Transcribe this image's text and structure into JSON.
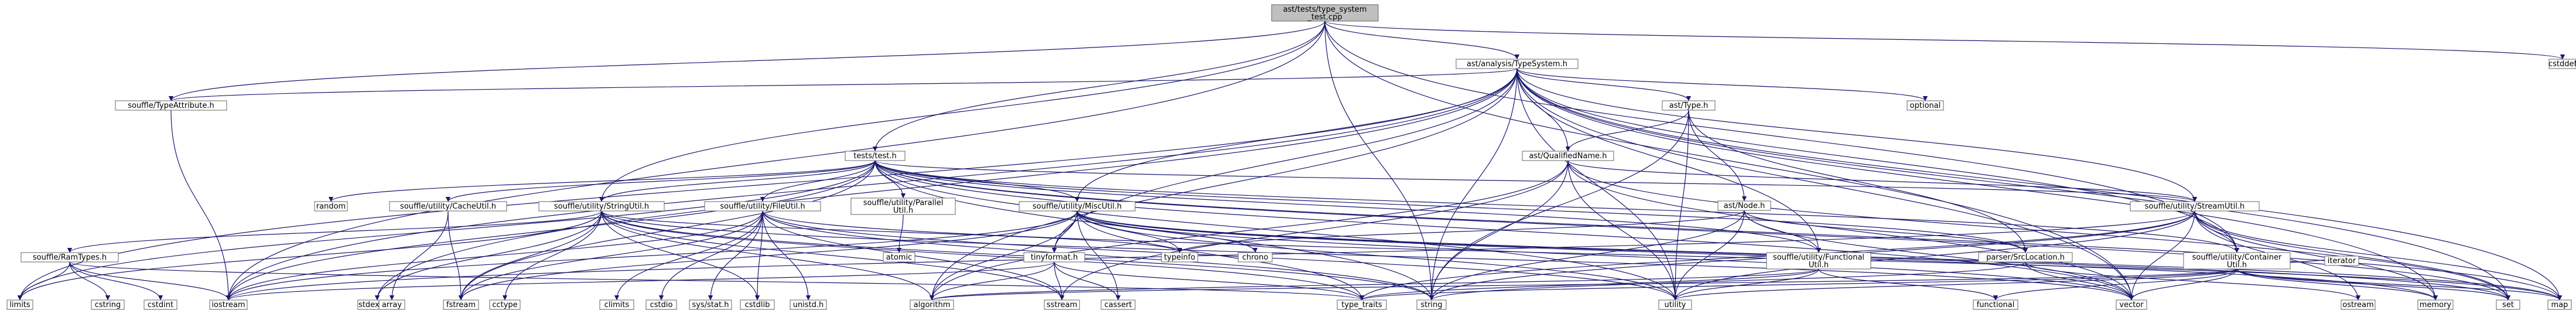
{
  "title": "Include dependency graph for ast/tests/type_system_test.cpp",
  "colors": {
    "root_fill": "#bfbfbf",
    "node_fill": "#ffffff",
    "edge": "#191970",
    "node_border": "#666666",
    "highlight_text": "#cc0000"
  },
  "nodes": [
    {
      "id": "root",
      "lines": [
        "ast/tests/type_system",
        "_test.cpp"
      ],
      "kind": "root",
      "interactable": false
    },
    {
      "id": "typesystem",
      "lines": [
        "ast/analysis/TypeSystem.h"
      ],
      "kind": "file",
      "interactable": true
    },
    {
      "id": "typeattribute",
      "lines": [
        "souffle/TypeAttribute.h"
      ],
      "kind": "file",
      "interactable": true
    },
    {
      "id": "tests",
      "lines": [
        "tests/test.h"
      ],
      "kind": "file",
      "interactable": true
    },
    {
      "id": "asttype",
      "lines": [
        "ast/Type.h"
      ],
      "kind": "file",
      "interactable": true
    },
    {
      "id": "qualifiedname",
      "lines": [
        "ast/QualifiedName.h"
      ],
      "kind": "file",
      "interactable": true
    },
    {
      "id": "astnode",
      "lines": [
        "ast/Node.h"
      ],
      "kind": "file-red",
      "interactable": true
    },
    {
      "id": "srclocation",
      "lines": [
        "parser/SrcLocation.h"
      ],
      "kind": "file",
      "interactable": true
    },
    {
      "id": "cachedutil",
      "lines": [
        "souffle/utility/CacheUtil.h"
      ],
      "kind": "file",
      "interactable": true
    },
    {
      "id": "stringutil",
      "lines": [
        "souffle/utility/StringUtil.h"
      ],
      "kind": "file",
      "interactable": true
    },
    {
      "id": "fileutil",
      "lines": [
        "souffle/utility/FileUtil.h"
      ],
      "kind": "file",
      "interactable": true
    },
    {
      "id": "parallelutil",
      "lines": [
        "souffle/utility/Parallel",
        "Util.h"
      ],
      "kind": "file",
      "interactable": true
    },
    {
      "id": "miscutil",
      "lines": [
        "souffle/utility/MiscUtil.h"
      ],
      "kind": "file",
      "interactable": true
    },
    {
      "id": "streamutil",
      "lines": [
        "souffle/utility/StreamUtil.h"
      ],
      "kind": "file",
      "interactable": true
    },
    {
      "id": "functionalutil",
      "lines": [
        "souffle/utility/Functional",
        "Util.h"
      ],
      "kind": "file",
      "interactable": true
    },
    {
      "id": "containerutil",
      "lines": [
        "souffle/utility/Container",
        "Util.h"
      ],
      "kind": "file",
      "interactable": true
    },
    {
      "id": "ramtypes",
      "lines": [
        "souffle/RamTypes.h"
      ],
      "kind": "file",
      "interactable": true
    },
    {
      "id": "tinyformat",
      "lines": [
        "tinyformat.h"
      ],
      "kind": "file",
      "interactable": true
    },
    {
      "id": "cstddef",
      "lines": [
        "cstddef"
      ],
      "kind": "std",
      "interactable": false
    },
    {
      "id": "optional",
      "lines": [
        "optional"
      ],
      "kind": "std",
      "interactable": false
    },
    {
      "id": "random",
      "lines": [
        "random"
      ],
      "kind": "std",
      "interactable": false
    },
    {
      "id": "stdexcept",
      "lines": [
        "stdexcept"
      ],
      "kind": "std",
      "interactable": false
    },
    {
      "id": "array",
      "lines": [
        "array"
      ],
      "kind": "std",
      "interactable": false
    },
    {
      "id": "fstream",
      "lines": [
        "fstream"
      ],
      "kind": "std",
      "interactable": false
    },
    {
      "id": "cctype",
      "lines": [
        "cctype"
      ],
      "kind": "std",
      "interactable": false
    },
    {
      "id": "climits",
      "lines": [
        "climits"
      ],
      "kind": "std",
      "interactable": false
    },
    {
      "id": "cstdio",
      "lines": [
        "cstdio"
      ],
      "kind": "std",
      "interactable": false
    },
    {
      "id": "sysstat",
      "lines": [
        "sys/stat.h"
      ],
      "kind": "std",
      "interactable": false
    },
    {
      "id": "cstdlib",
      "lines": [
        "cstdlib"
      ],
      "kind": "std",
      "interactable": false
    },
    {
      "id": "unistd",
      "lines": [
        "unistd.h"
      ],
      "kind": "std",
      "interactable": false
    },
    {
      "id": "atomic",
      "lines": [
        "atomic"
      ],
      "kind": "std",
      "interactable": false
    },
    {
      "id": "typeinfo",
      "lines": [
        "typeinfo"
      ],
      "kind": "std",
      "interactable": false
    },
    {
      "id": "chrono",
      "lines": [
        "chrono"
      ],
      "kind": "std",
      "interactable": false
    },
    {
      "id": "limits",
      "lines": [
        "limits"
      ],
      "kind": "std",
      "interactable": false
    },
    {
      "id": "cstring",
      "lines": [
        "cstring"
      ],
      "kind": "std",
      "interactable": false
    },
    {
      "id": "cstdint",
      "lines": [
        "cstdint"
      ],
      "kind": "std",
      "interactable": false
    },
    {
      "id": "iostream",
      "lines": [
        "iostream"
      ],
      "kind": "std",
      "interactable": false
    },
    {
      "id": "algorithm",
      "lines": [
        "algorithm"
      ],
      "kind": "std",
      "interactable": false
    },
    {
      "id": "sstream",
      "lines": [
        "sstream"
      ],
      "kind": "std",
      "interactable": false
    },
    {
      "id": "cassert",
      "lines": [
        "cassert"
      ],
      "kind": "std",
      "interactable": false
    },
    {
      "id": "string",
      "lines": [
        "string"
      ],
      "kind": "std",
      "interactable": false
    },
    {
      "id": "type_traits",
      "lines": [
        "type_traits"
      ],
      "kind": "std",
      "interactable": false
    },
    {
      "id": "utility",
      "lines": [
        "utility"
      ],
      "kind": "std",
      "interactable": false
    },
    {
      "id": "functional",
      "lines": [
        "functional"
      ],
      "kind": "std",
      "interactable": false
    },
    {
      "id": "vector",
      "lines": [
        "vector"
      ],
      "kind": "std",
      "interactable": false
    },
    {
      "id": "ostream",
      "lines": [
        "ostream"
      ],
      "kind": "std",
      "interactable": false
    },
    {
      "id": "iterator",
      "lines": [
        "iterator"
      ],
      "kind": "std",
      "interactable": false
    },
    {
      "id": "memory",
      "lines": [
        "memory"
      ],
      "kind": "std",
      "interactable": false
    },
    {
      "id": "set",
      "lines": [
        "set"
      ],
      "kind": "std",
      "interactable": false
    },
    {
      "id": "map",
      "lines": [
        "map"
      ],
      "kind": "std",
      "interactable": false
    }
  ],
  "edges": [
    [
      "root",
      "typesystem"
    ],
    [
      "root",
      "typeattribute"
    ],
    [
      "root",
      "tests"
    ],
    [
      "root",
      "stringutil"
    ],
    [
      "root",
      "string"
    ],
    [
      "root",
      "cstddef"
    ],
    [
      "root",
      "containerutil"
    ],
    [
      "root",
      "iostream"
    ],
    [
      "root",
      "vector"
    ],
    [
      "typesystem",
      "typeattribute"
    ],
    [
      "typesystem",
      "asttype"
    ],
    [
      "typesystem",
      "qualifiedname"
    ],
    [
      "typesystem",
      "optional"
    ],
    [
      "typesystem",
      "streamutil"
    ],
    [
      "typesystem",
      "containerutil"
    ],
    [
      "typesystem",
      "functionalutil"
    ],
    [
      "typesystem",
      "miscutil"
    ],
    [
      "typesystem",
      "tinyformat"
    ],
    [
      "typesystem",
      "stdexcept"
    ],
    [
      "typesystem",
      "iostream"
    ],
    [
      "typesystem",
      "algorithm"
    ],
    [
      "typesystem",
      "string"
    ],
    [
      "typesystem",
      "utility"
    ],
    [
      "typesystem",
      "vector"
    ],
    [
      "typesystem",
      "memory"
    ],
    [
      "typesystem",
      "set"
    ],
    [
      "typesystem",
      "map"
    ],
    [
      "typesystem",
      "limits"
    ],
    [
      "typeattribute",
      "iostream"
    ],
    [
      "tests",
      "random"
    ],
    [
      "tests",
      "cachedutil"
    ],
    [
      "tests",
      "stringutil"
    ],
    [
      "tests",
      "fileutil"
    ],
    [
      "tests",
      "parallelutil"
    ],
    [
      "tests",
      "miscutil"
    ],
    [
      "tests",
      "streamutil"
    ],
    [
      "tests",
      "functionalutil"
    ],
    [
      "tests",
      "containerutil"
    ],
    [
      "tests",
      "srclocation"
    ],
    [
      "tests",
      "fstream"
    ],
    [
      "tests",
      "iostream"
    ],
    [
      "tests",
      "string"
    ],
    [
      "tests",
      "utility"
    ],
    [
      "tests",
      "vector"
    ],
    [
      "tests",
      "set"
    ],
    [
      "tests",
      "map"
    ],
    [
      "tests",
      "limits"
    ],
    [
      "asttype",
      "qualifiedname"
    ],
    [
      "asttype",
      "astnode"
    ],
    [
      "asttype",
      "string"
    ],
    [
      "asttype",
      "utility"
    ],
    [
      "asttype",
      "srclocation"
    ],
    [
      "qualifiedname",
      "streamutil"
    ],
    [
      "qualifiedname",
      "algorithm"
    ],
    [
      "qualifiedname",
      "string"
    ],
    [
      "qualifiedname",
      "utility"
    ],
    [
      "qualifiedname",
      "vector"
    ],
    [
      "qualifiedname",
      "sstream"
    ],
    [
      "qualifiedname",
      "set"
    ],
    [
      "astnode",
      "srclocation"
    ],
    [
      "astnode",
      "functionalutil"
    ],
    [
      "astnode",
      "typeinfo"
    ],
    [
      "astnode",
      "string"
    ],
    [
      "astnode",
      "utility"
    ],
    [
      "astnode",
      "vector"
    ],
    [
      "srclocation",
      "ostream"
    ],
    [
      "srclocation",
      "string"
    ],
    [
      "srclocation",
      "vector"
    ],
    [
      "cachedutil",
      "array"
    ],
    [
      "cachedutil",
      "fstream"
    ],
    [
      "stringutil",
      "ramtypes"
    ],
    [
      "stringutil",
      "stdexcept"
    ],
    [
      "stringutil",
      "fstream"
    ],
    [
      "stringutil",
      "cctype"
    ],
    [
      "stringutil",
      "cstdlib"
    ],
    [
      "stringutil",
      "algorithm"
    ],
    [
      "stringutil",
      "sstream"
    ],
    [
      "stringutil",
      "string"
    ],
    [
      "stringutil",
      "type_traits"
    ],
    [
      "stringutil",
      "typeinfo"
    ],
    [
      "stringutil",
      "vector"
    ],
    [
      "stringutil",
      "limits"
    ],
    [
      "fileutil",
      "climits"
    ],
    [
      "fileutil",
      "cstdio"
    ],
    [
      "fileutil",
      "sysstat"
    ],
    [
      "fileutil",
      "cstdlib"
    ],
    [
      "fileutil",
      "unistd"
    ],
    [
      "fileutil",
      "fstream"
    ],
    [
      "fileutil",
      "sstream"
    ],
    [
      "fileutil",
      "string"
    ],
    [
      "fileutil",
      "utility"
    ],
    [
      "fileutil",
      "iostream"
    ],
    [
      "fileutil",
      "map"
    ],
    [
      "parallelutil",
      "atomic"
    ],
    [
      "miscutil",
      "tinyformat"
    ],
    [
      "miscutil",
      "chrono"
    ],
    [
      "miscutil",
      "cassert"
    ],
    [
      "miscutil",
      "iostream"
    ],
    [
      "miscutil",
      "utility"
    ],
    [
      "miscutil",
      "typeinfo"
    ],
    [
      "miscutil",
      "type_traits"
    ],
    [
      "miscutil",
      "algorithm"
    ],
    [
      "miscutil",
      "memory"
    ],
    [
      "miscutil",
      "map"
    ],
    [
      "miscutil",
      "set"
    ],
    [
      "miscutil",
      "vector"
    ],
    [
      "miscutil",
      "fstream"
    ],
    [
      "streamutil",
      "containerutil"
    ],
    [
      "streamutil",
      "iostream"
    ],
    [
      "streamutil",
      "ostream"
    ],
    [
      "streamutil",
      "string"
    ],
    [
      "streamutil",
      "type_traits"
    ],
    [
      "streamutil",
      "utility"
    ],
    [
      "streamutil",
      "vector"
    ],
    [
      "streamutil",
      "set"
    ],
    [
      "streamutil",
      "map"
    ],
    [
      "streamutil",
      "memory"
    ],
    [
      "functionalutil",
      "functional"
    ],
    [
      "functionalutil",
      "type_traits"
    ],
    [
      "functionalutil",
      "utility"
    ],
    [
      "functionalutil",
      "algorithm"
    ],
    [
      "containerutil",
      "iterator"
    ],
    [
      "containerutil",
      "memory"
    ],
    [
      "containerutil",
      "utility"
    ],
    [
      "containerutil",
      "vector"
    ],
    [
      "containerutil",
      "set"
    ],
    [
      "containerutil",
      "map"
    ],
    [
      "containerutil",
      "type_traits"
    ],
    [
      "containerutil",
      "algorithm"
    ],
    [
      "containerutil",
      "functional"
    ],
    [
      "ramtypes",
      "limits"
    ],
    [
      "ramtypes",
      "cstring"
    ],
    [
      "ramtypes",
      "cstdint"
    ],
    [
      "ramtypes",
      "iostream"
    ],
    [
      "ramtypes",
      "type_traits"
    ],
    [
      "tinyformat",
      "cassert"
    ],
    [
      "tinyformat",
      "iostream"
    ],
    [
      "tinyformat",
      "sstream"
    ],
    [
      "tinyformat",
      "algorithm"
    ],
    [
      "tinyformat",
      "type_traits"
    ]
  ]
}
